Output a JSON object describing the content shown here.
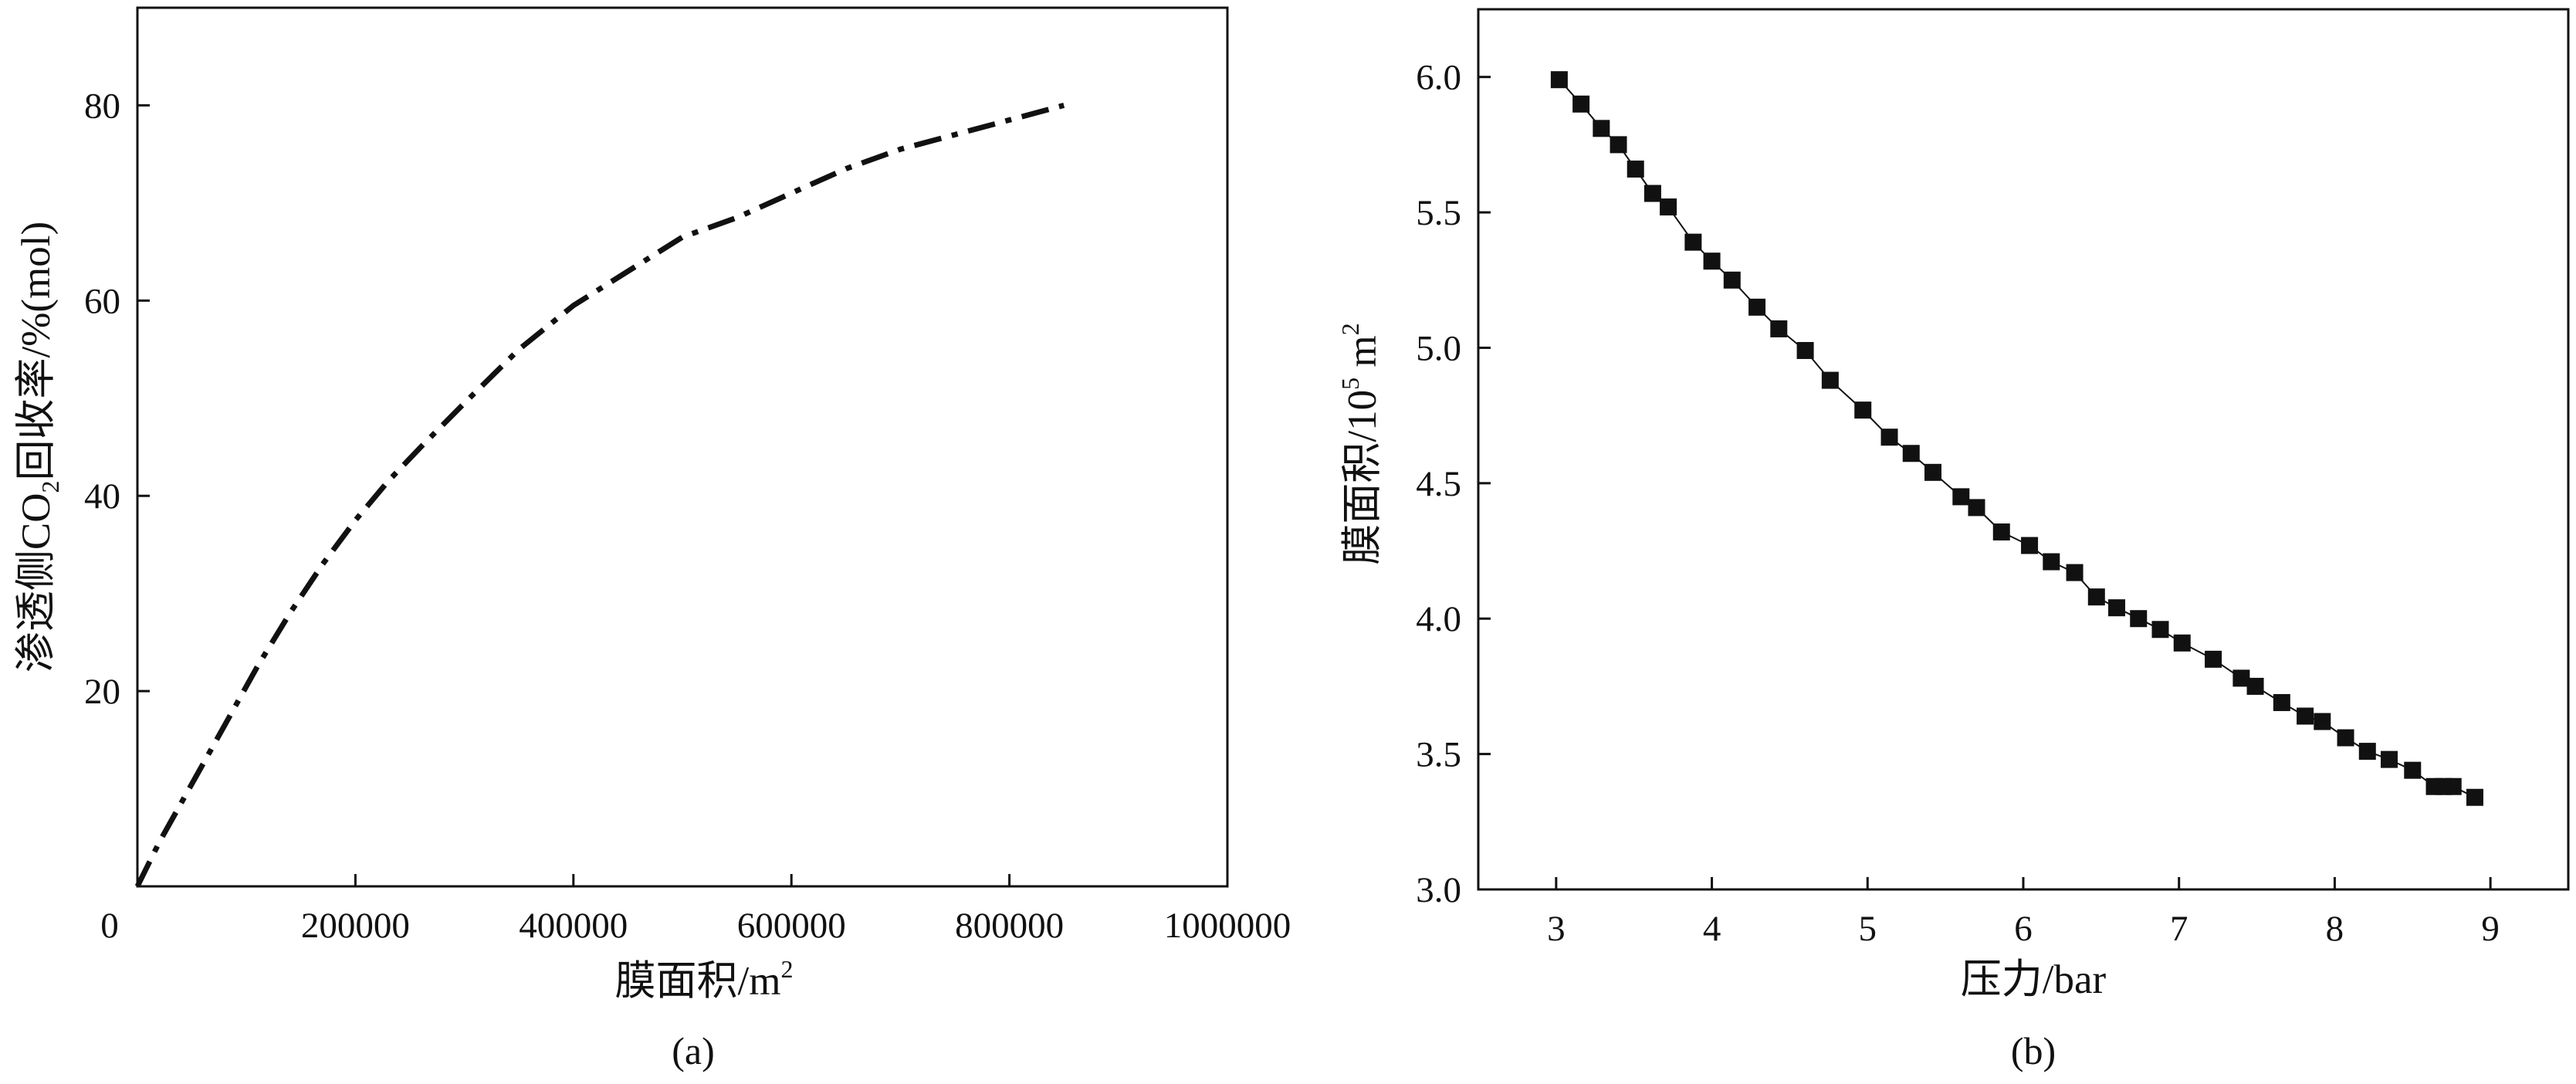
{
  "chart_data": [
    {
      "type": "line",
      "panel_label": "(a)",
      "title": "",
      "xlabel": "膜面积/m²",
      "xlabel_parts": {
        "main": "膜面积/m",
        "sup": "2"
      },
      "ylabel": "渗透侧CO₂回收率/%(mol)",
      "ylabel_parts": {
        "pre": "渗透侧CO",
        "sub": "2",
        "post": "回收率/%(mol)"
      },
      "xlim": [
        0,
        1000000
      ],
      "ylim": [
        0,
        90
      ],
      "x_origin_label": "0",
      "xticks": [
        200000,
        400000,
        600000,
        800000,
        1000000
      ],
      "xtick_labels": [
        "200000",
        "400000",
        "600000",
        "800000",
        "1000000"
      ],
      "yticks": [
        20,
        40,
        60,
        80
      ],
      "ytick_labels": [
        "20",
        "40",
        "60",
        "80"
      ],
      "grid": false,
      "series": [
        {
          "name": "CO2回收率",
          "line_style": "dash-dot",
          "color": "#111111",
          "x": [
            0,
            20000,
            50000,
            80000,
            110000,
            140000,
            170000,
            200000,
            230000,
            260000,
            300000,
            350000,
            400000,
            450000,
            500000,
            550000,
            600000,
            650000,
            700000,
            750000,
            800000,
            850000
          ],
          "y": [
            0,
            4.5,
            10.5,
            16.5,
            22.5,
            28,
            33,
            37.5,
            41.5,
            45,
            49.5,
            55,
            59.5,
            63,
            66.5,
            68.5,
            71,
            73.5,
            75.5,
            77,
            78.5,
            80
          ]
        }
      ]
    },
    {
      "type": "line",
      "panel_label": "(b)",
      "title": "",
      "xlabel": "压力/bar",
      "ylabel": "膜面积/10⁵ m²",
      "ylabel_parts": {
        "pre": "膜面积/10",
        "sup": "5",
        "post": " m",
        "sup2": "2"
      },
      "xlim": [
        2.5,
        9.5
      ],
      "ylim": [
        3.0,
        6.25
      ],
      "xticks": [
        3,
        4,
        5,
        6,
        7,
        8,
        9
      ],
      "xtick_labels": [
        "3",
        "4",
        "5",
        "6",
        "7",
        "8",
        "9"
      ],
      "yticks": [
        3.0,
        3.5,
        4.0,
        4.5,
        5.0,
        5.5,
        6.0
      ],
      "ytick_labels": [
        "3.0",
        "3.5",
        "4.0",
        "4.5",
        "5.0",
        "5.5",
        "6.0"
      ],
      "grid": false,
      "series": [
        {
          "name": "膜面积",
          "marker": "square",
          "line_style": "solid",
          "color": "#111111",
          "x": [
            3.02,
            3.16,
            3.29,
            3.4,
            3.51,
            3.62,
            3.72,
            3.88,
            4.0,
            4.13,
            4.29,
            4.43,
            4.6,
            4.76,
            4.97,
            5.14,
            5.28,
            5.42,
            5.6,
            5.7,
            5.86,
            6.04,
            6.18,
            6.33,
            6.47,
            6.6,
            6.74,
            6.88,
            7.02,
            7.22,
            7.4,
            7.49,
            7.66,
            7.81,
            7.92,
            8.07,
            8.21,
            8.35,
            8.5,
            8.64,
            8.7,
            8.76,
            8.9
          ],
          "y": [
            5.99,
            5.9,
            5.81,
            5.75,
            5.66,
            5.57,
            5.52,
            5.39,
            5.32,
            5.25,
            5.15,
            5.07,
            4.99,
            4.88,
            4.77,
            4.67,
            4.61,
            4.54,
            4.45,
            4.41,
            4.32,
            4.27,
            4.21,
            4.17,
            4.08,
            4.04,
            4.0,
            3.96,
            3.91,
            3.85,
            3.78,
            3.75,
            3.69,
            3.64,
            3.62,
            3.56,
            3.51,
            3.48,
            3.44,
            3.38,
            3.38,
            3.38,
            3.34
          ]
        }
      ]
    }
  ]
}
